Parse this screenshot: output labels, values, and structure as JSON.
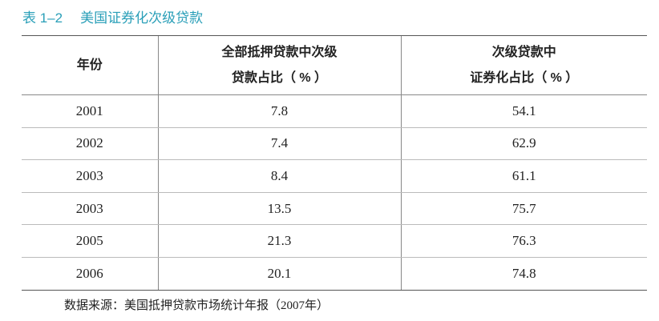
{
  "title": {
    "number": "表 1–2",
    "text": "美国证券化次级贷款"
  },
  "table": {
    "header": [
      [
        "年份"
      ],
      [
        "全部抵押贷款中次级",
        "贷款占比（ % ）"
      ],
      [
        "次级贷款中",
        "证券化占比（ % ）"
      ]
    ],
    "rows": [
      [
        "2001",
        "7.8",
        "54.1"
      ],
      [
        "2002",
        "7.4",
        "62.9"
      ],
      [
        "2003",
        "8.4",
        "61.1"
      ],
      [
        "2003",
        "13.5",
        "75.7"
      ],
      [
        "2005",
        "21.3",
        "76.3"
      ],
      [
        "2006",
        "20.1",
        "74.8"
      ]
    ]
  },
  "source": "数据来源：美国抵押贷款市场统计年报（2007年）"
}
